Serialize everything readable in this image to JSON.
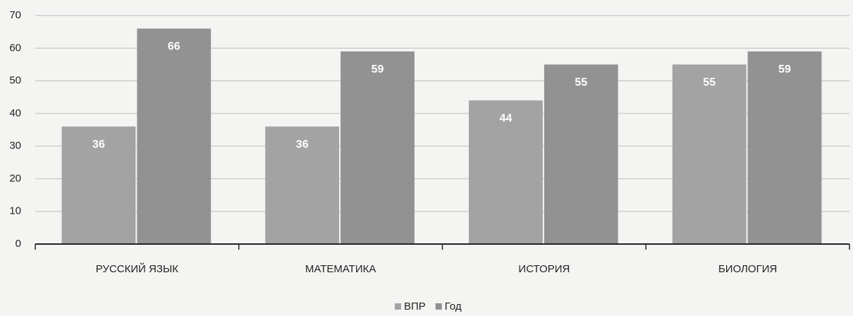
{
  "chart_data": {
    "type": "bar",
    "categories": [
      "РУССКИЙ ЯЗЫК",
      "МАТЕМАТИКА",
      "ИСТОРИЯ",
      "БИОЛОГИЯ"
    ],
    "series": [
      {
        "name": "ВПР",
        "color": "#a3a3a3",
        "values": [
          36,
          36,
          44,
          55
        ]
      },
      {
        "name": "Год",
        "color": "#929292",
        "values": [
          66,
          59,
          55,
          59
        ]
      }
    ],
    "ylim": [
      0,
      70
    ],
    "yticks": [
      0,
      10,
      20,
      30,
      40,
      50,
      60,
      70
    ],
    "grid": true,
    "legend": "bottom"
  }
}
